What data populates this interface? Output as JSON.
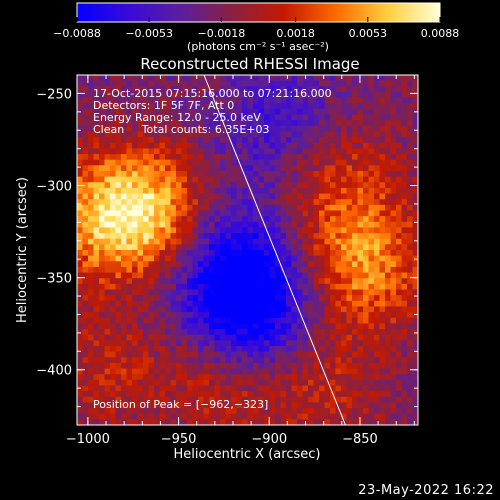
{
  "chart_data": {
    "type": "heatmap",
    "title": "Reconstructed RHESSI Image",
    "xlabel": "Heliocentric X (arcsec)",
    "ylabel": "Heliocentric Y (arcsec)",
    "xlim": [
      -1006,
      -818
    ],
    "ylim": [
      -430,
      -240
    ],
    "x_ticks": [
      {
        "value": -1000,
        "label": "−1000"
      },
      {
        "value": -950,
        "label": "−950"
      },
      {
        "value": -900,
        "label": "−900"
      },
      {
        "value": -850,
        "label": "−850"
      }
    ],
    "y_ticks": [
      {
        "value": -250,
        "label": "−250"
      },
      {
        "value": -300,
        "label": "−300"
      },
      {
        "value": -350,
        "label": "−350"
      },
      {
        "value": -400,
        "label": "−400"
      }
    ],
    "colorbar": {
      "min": -0.0088,
      "max": 0.0088,
      "ticks": [
        {
          "value": -0.0088,
          "label": "−0.0088"
        },
        {
          "value": -0.0053,
          "label": "−0.0053"
        },
        {
          "value": -0.0018,
          "label": "−0.0018"
        },
        {
          "value": 0.0018,
          "label": "0.0018"
        },
        {
          "value": 0.0053,
          "label": "0.0053"
        },
        {
          "value": 0.0088,
          "label": "0.0088"
        }
      ],
      "unit_label": "(photons cm⁻² s⁻¹ asec⁻²)",
      "colors": [
        "#0000ff",
        "#3a0ad9",
        "#5a1f9c",
        "#8a2040",
        "#c41a00",
        "#ff6a00",
        "#ffd040",
        "#ffffd8"
      ]
    },
    "annotations": [
      "17-Oct-2015 07:15:16.000 to 07:21:16.000",
      "Detectors: 1F 5F 7F, Att 0",
      "Energy Range: 12.0 - 25.0 keV",
      "Clean     Total counts: 6.35E+03",
      "Position of Peak = [−962,−323]"
    ],
    "peak": {
      "x": -962,
      "y": -323
    },
    "limb_line": [
      {
        "x": -936,
        "y": -240
      },
      {
        "x": -858,
        "y": -430
      }
    ],
    "sources": [
      {
        "x": -968,
        "y": -315,
        "amplitude": 0.0088
      },
      {
        "x": -848,
        "y": -345,
        "amplitude": 0.0065
      },
      {
        "x": -1000,
        "y": -318,
        "amplitude": 0.0045
      },
      {
        "x": -860,
        "y": -300,
        "amplitude": 0.0042
      },
      {
        "x": -925,
        "y": -405,
        "amplitude": 0.0035
      },
      {
        "x": -868,
        "y": -412,
        "amplitude": 0.003
      },
      {
        "x": -990,
        "y": -400,
        "amplitude": 0.003
      },
      {
        "x": -912,
        "y": -366,
        "amplitude": -0.0088
      },
      {
        "x": -922,
        "y": -338,
        "amplitude": -0.0045
      },
      {
        "x": -895,
        "y": -268,
        "amplitude": -0.0035
      }
    ]
  },
  "footer": {
    "date": "23-May-2022 16:22"
  }
}
